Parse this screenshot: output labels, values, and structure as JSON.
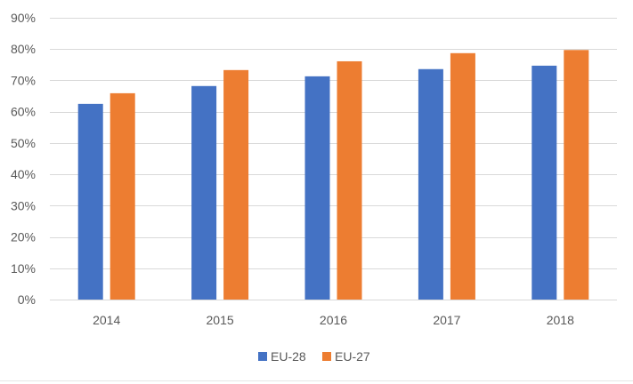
{
  "chart_data": {
    "type": "bar",
    "title": "",
    "xlabel": "",
    "ylabel": "",
    "categories": [
      "2014",
      "2015",
      "2016",
      "2017",
      "2018"
    ],
    "series": [
      {
        "name": "EU-28",
        "color": "#4472c4",
        "values": [
          62.5,
          68.2,
          71.3,
          73.6,
          74.7
        ]
      },
      {
        "name": "EU-27",
        "color": "#ed7d31",
        "values": [
          65.9,
          73.3,
          76.1,
          78.7,
          79.7
        ]
      }
    ],
    "ylim": [
      0,
      90
    ],
    "yticks": [
      0,
      10,
      20,
      30,
      40,
      50,
      60,
      70,
      80,
      90
    ],
    "ytick_format": "percent",
    "grid": true,
    "legend_position": "bottom"
  }
}
